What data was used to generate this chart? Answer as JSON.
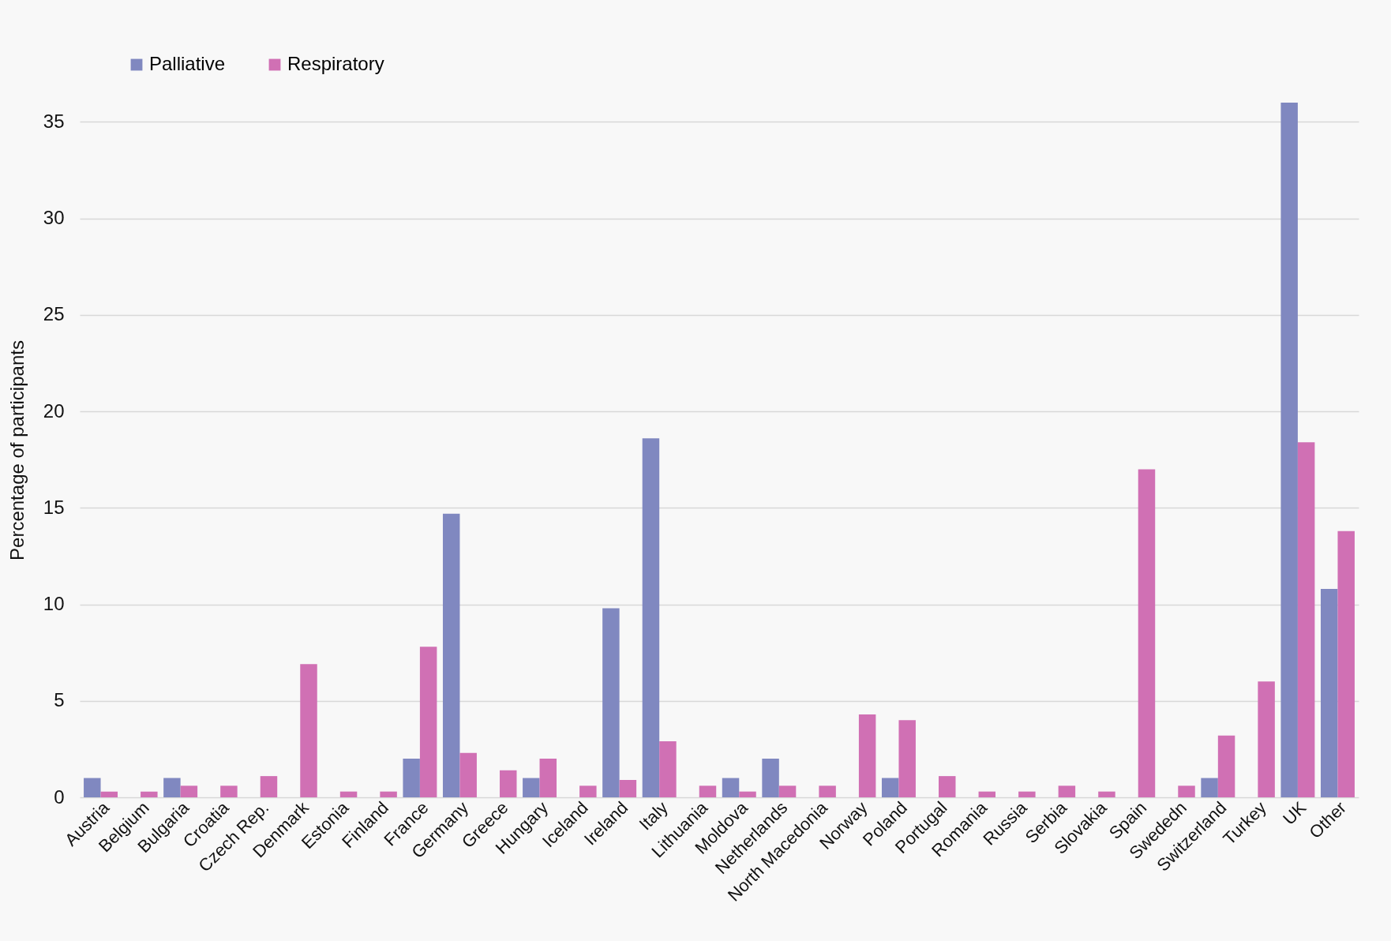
{
  "chart_data": {
    "type": "bar",
    "ylabel": "Percentage of participants",
    "categories": [
      "Austria",
      "Belgium",
      "Bulgaria",
      "Croatia",
      "Czech Rep.",
      "Denmark",
      "Estonia",
      "Finland",
      "France",
      "Germany",
      "Greece",
      "Hungary",
      "Iceland",
      "Ireland",
      "Italy",
      "Lithuania",
      "Moldova",
      "Netherlands",
      "North Macedonia",
      "Norway",
      "Poland",
      "Portugal",
      "Romania",
      "Russia",
      "Serbia",
      "Slovakia",
      "Spain",
      "Swededn",
      "Switzerland",
      "Turkey",
      "UK",
      "Other"
    ],
    "series": [
      {
        "name": "Palliative",
        "color": "#8088c0",
        "values": [
          1,
          0,
          1,
          0,
          0,
          0,
          0,
          0,
          2,
          14.7,
          0,
          1,
          0,
          9.8,
          18.6,
          0,
          1,
          2,
          0,
          0,
          1,
          0,
          0,
          0,
          0,
          0,
          0,
          0,
          1,
          0,
          36,
          10.8
        ]
      },
      {
        "name": "Respiratory",
        "color": "#d070b4",
        "values": [
          0.3,
          0.3,
          0.6,
          0.6,
          1.1,
          6.9,
          0.3,
          0.3,
          7.8,
          2.3,
          1.4,
          2,
          0.6,
          0.9,
          2.9,
          0.6,
          0.3,
          0.6,
          0.6,
          4.3,
          4,
          1.1,
          0.3,
          0.3,
          0.6,
          0.3,
          17,
          0.6,
          3.2,
          6,
          18.4,
          13.8
        ]
      }
    ],
    "ylim": [
      0,
      36
    ],
    "yticks": [
      0,
      5,
      10,
      15,
      20,
      25,
      30,
      35
    ],
    "grid": "y",
    "legend": "top left"
  }
}
